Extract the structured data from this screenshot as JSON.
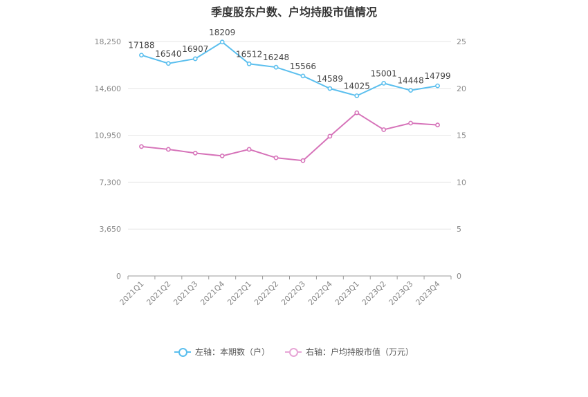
{
  "chart_data": {
    "type": "line",
    "title": "季度股东户数、户均持股市值情况",
    "categories": [
      "2021Q1",
      "2021Q2",
      "2021Q3",
      "2021Q4",
      "2022Q1",
      "2022Q2",
      "2022Q3",
      "2022Q4",
      "2023Q1",
      "2023Q2",
      "2023Q3",
      "2023Q4"
    ],
    "y_left": {
      "ylim": [
        0,
        18250
      ],
      "ticks": [
        "0",
        "3,650",
        "7,300",
        "10,950",
        "14,600",
        "18,250"
      ],
      "tick_values": [
        0,
        3650,
        7300,
        10950,
        14600,
        18250
      ]
    },
    "y_right": {
      "ylim": [
        0,
        25
      ],
      "ticks": [
        "0",
        "5",
        "10",
        "15",
        "20",
        "25"
      ],
      "tick_values": [
        0,
        5,
        10,
        15,
        20,
        25
      ]
    },
    "series": [
      {
        "name": "左轴：本期数（户）",
        "axis": "left",
        "color": "#5bbfee",
        "values": [
          17188,
          16540,
          16907,
          18209,
          16512,
          16248,
          15566,
          14589,
          14025,
          15001,
          14448,
          14799
        ],
        "labels": [
          "17188",
          "16540",
          "16907",
          "18209",
          "16512",
          "16248",
          "15566",
          "14589",
          "14025",
          "15001",
          "14448",
          "14799"
        ]
      },
      {
        "name": "右轴：户均持股市值（万元）",
        "axis": "right",
        "color": "#d673b9",
        "values": [
          13.8,
          13.5,
          13.1,
          12.8,
          13.5,
          12.6,
          12.3,
          14.9,
          17.4,
          15.6,
          16.3,
          16.1
        ]
      }
    ],
    "grid": true,
    "legend": "bottom-center"
  }
}
